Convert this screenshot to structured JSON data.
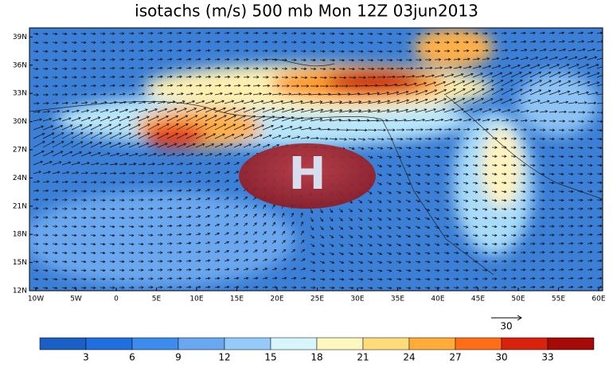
{
  "title": "isotachs (m/s) 500 mb Mon 12Z 03jun2013",
  "map": {
    "lat_labels": [
      "12N",
      "15N",
      "18N",
      "21N",
      "24N",
      "27N",
      "30N",
      "33N",
      "36N",
      "39N"
    ],
    "lon_labels": [
      "10W",
      "5W",
      "0",
      "5E",
      "10E",
      "15E",
      "20E",
      "25E",
      "30E",
      "35E",
      "40E",
      "45E",
      "50E",
      "55E",
      "60E"
    ],
    "high_marker": "H"
  },
  "reference_vector": {
    "label": "30"
  },
  "colorbar": {
    "labels": [
      3,
      6,
      9,
      12,
      15,
      18,
      21,
      24,
      27,
      30,
      33
    ]
  }
}
